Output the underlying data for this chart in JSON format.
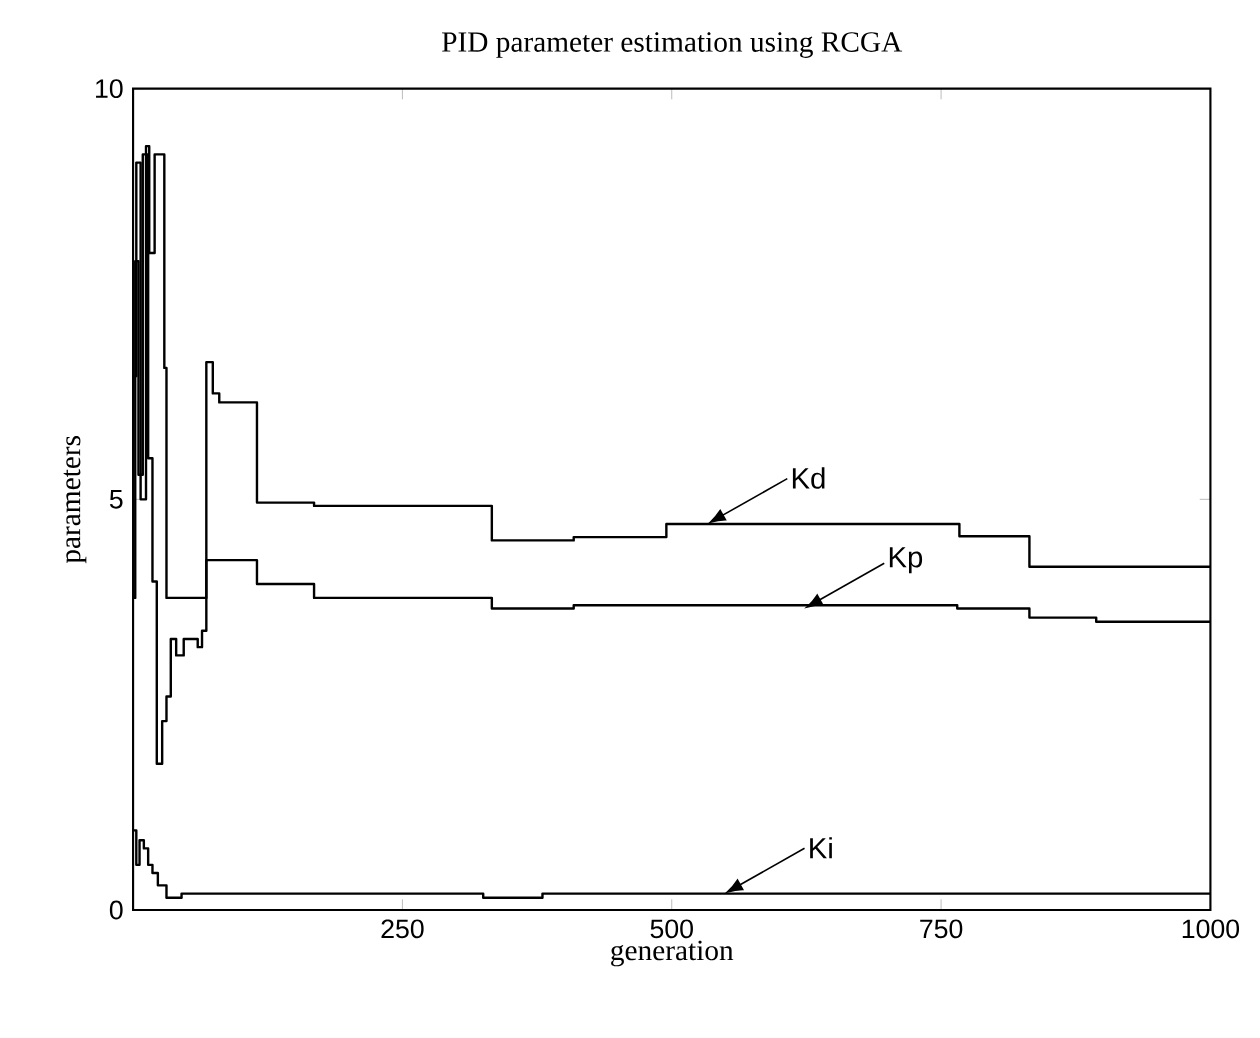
{
  "chart_data": {
    "type": "step",
    "title": "PID parameter estimation using RCGA",
    "xlabel": "generation",
    "ylabel": "parameters",
    "xlim": [
      0,
      1000
    ],
    "ylim": [
      0,
      10
    ],
    "xticks": [
      250,
      500,
      750,
      1000
    ],
    "yticks": [
      0,
      5,
      10
    ],
    "grid": false,
    "series": [
      {
        "color": "#000000",
        "x": [
          0,
          3,
          7,
          12,
          15,
          20,
          29,
          31,
          47,
          68,
          74,
          80,
          115,
          168,
          333,
          409,
          495,
          767,
          832,
          1000
        ],
        "values": [
          6.5,
          9.1,
          5.0,
          9.3,
          8.0,
          9.2,
          6.6,
          3.8,
          3.8,
          6.67,
          6.29,
          6.18,
          4.96,
          4.92,
          4.5,
          4.54,
          4.7,
          4.55,
          4.18,
          4.18
        ]
      },
      {
        "color": "#000000",
        "x": [
          0,
          2,
          5,
          9,
          14,
          18,
          22,
          27,
          31,
          35,
          40,
          47,
          60,
          64,
          68,
          115,
          168,
          333,
          409,
          765,
          832,
          894,
          1000
        ],
        "values": [
          3.8,
          7.9,
          5.3,
          9.2,
          5.5,
          4.0,
          1.78,
          2.3,
          2.6,
          3.3,
          3.1,
          3.3,
          3.2,
          3.4,
          4.26,
          3.97,
          3.8,
          3.67,
          3.71,
          3.67,
          3.56,
          3.51,
          3.51
        ]
      },
      {
        "color": "#000000",
        "x": [
          0,
          3,
          6,
          10,
          14,
          18,
          23,
          31,
          45,
          325,
          380,
          1000
        ],
        "values": [
          0.97,
          0.55,
          0.85,
          0.75,
          0.55,
          0.45,
          0.3,
          0.15,
          0.2,
          0.15,
          0.2,
          0.2
        ]
      }
    ],
    "annotations": [
      {
        "text": "Kd",
        "x": 533,
        "y": 4.7
      },
      {
        "text": "Kp",
        "x": 623,
        "y": 3.67
      },
      {
        "text": "Ki",
        "x": 549,
        "y": 0.2
      }
    ]
  }
}
